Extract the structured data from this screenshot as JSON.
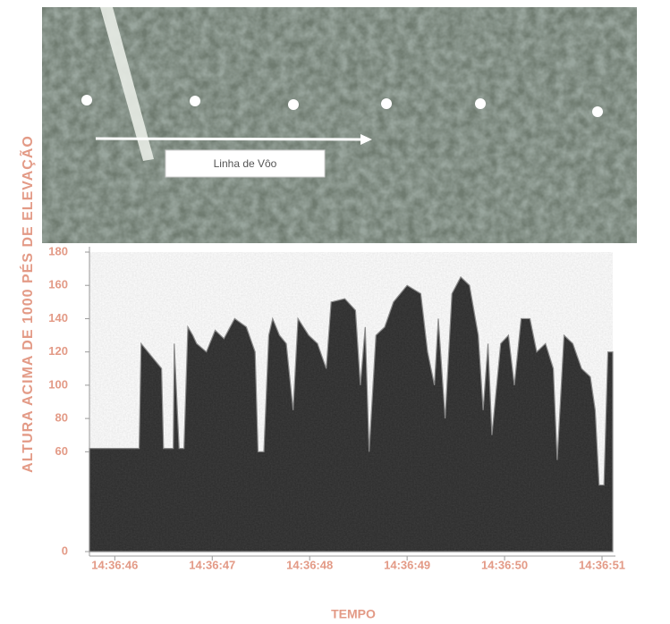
{
  "chart_data": {
    "type": "area",
    "xlabel": "TEMPO",
    "ylabel": "ALTURA ACIMA DE 1000 PÉS DE ELEVAÇÃO",
    "annotation": "Linha de Vôo",
    "color": "#2b2b2b",
    "x": [
      45.74,
      46.25,
      46.27,
      46.48,
      46.5,
      46.6,
      46.61,
      46.66,
      46.71,
      46.75,
      46.8,
      46.84,
      46.94,
      47.03,
      47.12,
      47.23,
      47.35,
      47.44,
      47.47,
      47.53,
      47.58,
      47.62,
      47.69,
      47.76,
      47.83,
      47.88,
      47.99,
      48.08,
      48.17,
      48.22,
      48.36,
      48.47,
      48.52,
      48.57,
      48.61,
      48.68,
      48.77,
      48.86,
      49.0,
      49.14,
      49.21,
      49.28,
      49.32,
      49.39,
      49.46,
      49.55,
      49.64,
      49.73,
      49.78,
      49.83,
      49.87,
      49.96,
      50.04,
      50.1,
      50.17,
      50.26,
      50.33,
      50.42,
      50.5,
      50.54,
      50.61,
      50.7,
      50.79,
      50.88,
      50.93,
      50.97,
      51.02,
      51.06,
      51.11
    ],
    "values": [
      62,
      62,
      125,
      110,
      62,
      62,
      125,
      62,
      62,
      135,
      130,
      125,
      120,
      133,
      128,
      140,
      135,
      120,
      60,
      60,
      130,
      140,
      130,
      125,
      85,
      140,
      130,
      125,
      110,
      150,
      152,
      145,
      100,
      135,
      60,
      130,
      135,
      150,
      160,
      155,
      120,
      100,
      140,
      80,
      155,
      165,
      160,
      130,
      85,
      125,
      70,
      125,
      130,
      100,
      140,
      140,
      120,
      125,
      110,
      55,
      130,
      125,
      110,
      105,
      85,
      40,
      40,
      120,
      120
    ],
    "xlim": [
      45.74,
      51.11
    ],
    "ylim": [
      0,
      180
    ],
    "xticks": [
      {
        "value": 46,
        "label": "14:36:46"
      },
      {
        "value": 47,
        "label": "14:36:47"
      },
      {
        "value": 48,
        "label": "14:36:48"
      },
      {
        "value": 49,
        "label": "14:36:49"
      },
      {
        "value": 50,
        "label": "14:36:50"
      },
      {
        "value": 51,
        "label": "14:36:51"
      }
    ],
    "yticks": [
      0,
      60,
      80,
      100,
      120,
      140,
      160,
      180
    ]
  }
}
